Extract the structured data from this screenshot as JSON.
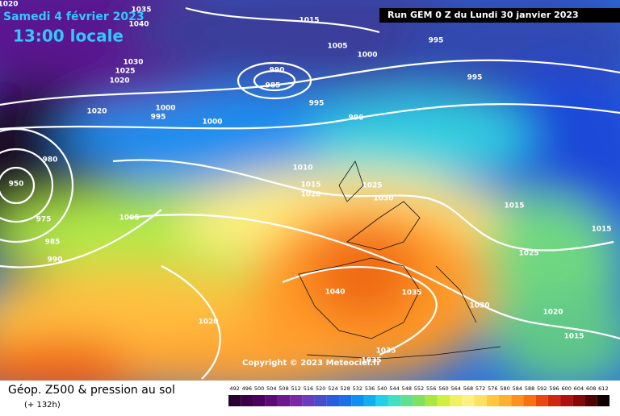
{
  "header": {
    "date": "Samedi 4 février 2023",
    "time": "13:00 locale",
    "run": "Run GEM 0 Z du Lundi 30 janvier 2023"
  },
  "map": {
    "isobar_labels": [
      "1020",
      "1035",
      "1040",
      "1015",
      "995",
      "1005",
      "1000",
      "1030",
      "1025",
      "1020",
      "990",
      "985",
      "995",
      "995",
      "1020",
      "1000",
      "995",
      "1000",
      "990",
      "980",
      "950",
      "1010",
      "1015",
      "1020",
      "1025",
      "1030",
      "1015",
      "1015",
      "1005",
      "975",
      "985",
      "990",
      "1025",
      "1040",
      "1035",
      "1030",
      "1020",
      "1020",
      "1015",
      "1035",
      "1035"
    ],
    "copyright": "Copyright © 2023 Meteociel.fr"
  },
  "footer": {
    "title": "Géop. Z500 & pression au sol",
    "lead": "(+ 132h)"
  },
  "scale": {
    "labels": [
      492,
      496,
      500,
      504,
      508,
      512,
      516,
      520,
      524,
      528,
      532,
      536,
      540,
      544,
      548,
      552,
      556,
      560,
      564,
      568,
      572,
      576,
      580,
      584,
      588,
      592,
      596,
      600,
      604,
      608,
      612
    ],
    "colors": [
      "#2a0030",
      "#3b0048",
      "#4c0060",
      "#5d0a78",
      "#6e1890",
      "#7a28a8",
      "#6a3cc0",
      "#4a4cd0",
      "#2a5ce0",
      "#1a70e8",
      "#1090f0",
      "#10b0f0",
      "#20d0e8",
      "#40e0c0",
      "#60e090",
      "#80e060",
      "#a8e840",
      "#d0f040",
      "#f0f060",
      "#fff080",
      "#ffe060",
      "#ffc840",
      "#ffb030",
      "#ff9020",
      "#f87010",
      "#e84810",
      "#d02810",
      "#b01010",
      "#880808",
      "#500000",
      "#100000"
    ]
  }
}
